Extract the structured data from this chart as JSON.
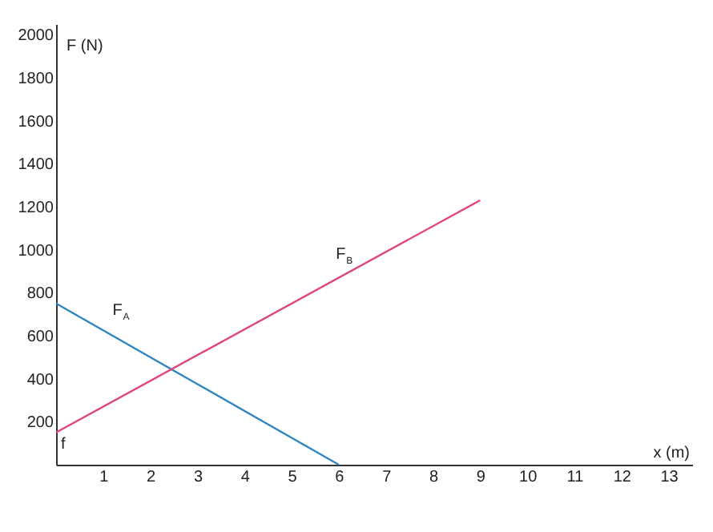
{
  "chart_data": {
    "type": "line",
    "xlabel": "x (m)",
    "ylabel": "F (N)",
    "xlim": [
      0,
      13.5
    ],
    "ylim": [
      0,
      2050
    ],
    "xticks": [
      1,
      2,
      3,
      4,
      5,
      6,
      7,
      8,
      9,
      10,
      11,
      12,
      13
    ],
    "yticks": [
      200,
      400,
      600,
      800,
      1000,
      1200,
      1400,
      1600,
      1800,
      2000
    ],
    "series": [
      {
        "name": "F$_{A}$",
        "color": "#2f86c0",
        "x": [
          0,
          6
        ],
        "values": [
          750,
          0
        ]
      },
      {
        "name": "F$_{B}$",
        "color": "#e0457b",
        "x": [
          0,
          9
        ],
        "values": [
          150,
          1230
        ]
      }
    ],
    "annotations": [
      "f"
    ]
  }
}
